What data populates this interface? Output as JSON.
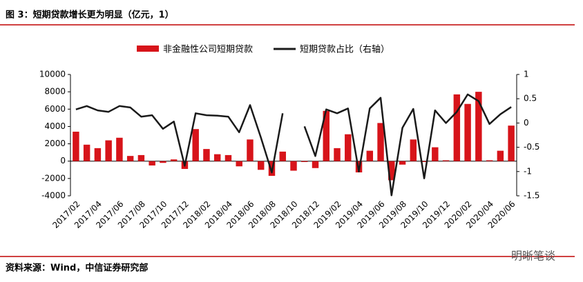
{
  "chart_data": {
    "type": "bar_line",
    "title": "图 3：短期贷款增长更为明显（亿元，1）",
    "source": "资料来源：Wind，中信证券研究部",
    "watermark": "明晰笔谈",
    "categories": [
      "2017/02",
      null,
      "2017/04",
      null,
      "2017/06",
      null,
      "2017/08",
      null,
      "2017/10",
      null,
      "2017/12",
      null,
      "2018/02",
      null,
      "2018/04",
      null,
      "2018/06",
      null,
      "2018/08",
      null,
      "2018/10",
      null,
      "2018/12",
      null,
      "2019/02",
      null,
      "2019/04",
      null,
      "2019/06",
      null,
      "2019/08",
      null,
      "2019/10",
      null,
      "2019/12",
      null,
      "2020/02",
      null,
      "2020/04",
      null,
      "2020/06"
    ],
    "series": [
      {
        "name": "非金融性公司短期贷款",
        "color": "#d7141a",
        "type": "bar",
        "values": [
          3400,
          1900,
          1500,
          2400,
          2700,
          600,
          700,
          -500,
          -200,
          200,
          -900,
          3700,
          1400,
          800,
          700,
          -600,
          2500,
          -1000,
          -1700,
          1100,
          -1100,
          -100,
          -800,
          5800,
          1500,
          3100,
          -1300,
          1200,
          4400,
          -2200,
          -400,
          2500,
          -100,
          1600,
          100,
          7700,
          6600,
          8000,
          100,
          1200,
          4100
        ]
      },
      {
        "name": "短期贷款占比（右轴）",
        "color": "#1a1a1a",
        "type": "line",
        "axis": "y2",
        "values": [
          0.28,
          0.35,
          0.26,
          0.23,
          0.35,
          0.32,
          0.13,
          0.16,
          -0.12,
          0.03,
          -0.88,
          0.2,
          0.16,
          0.15,
          0.13,
          -0.19,
          0.37,
          -0.3,
          -1.02,
          0.2,
          null,
          -0.07,
          -0.68,
          0.28,
          0.2,
          0.3,
          -1.0,
          0.3,
          0.52,
          -1.49,
          -0.1,
          0.29,
          -1.14,
          0.26,
          0.0,
          0.23,
          0.59,
          0.45,
          -0.02,
          0.18,
          0.33
        ]
      }
    ],
    "ylim": [
      -4000,
      10000
    ],
    "yticks": [
      -4000,
      -2000,
      0,
      2000,
      4000,
      6000,
      8000,
      10000
    ],
    "y2lim": [
      -1.5,
      1
    ],
    "y2ticks": [
      -1.5,
      -1,
      -0.5,
      0,
      0.5,
      1
    ],
    "legend": "top"
  }
}
